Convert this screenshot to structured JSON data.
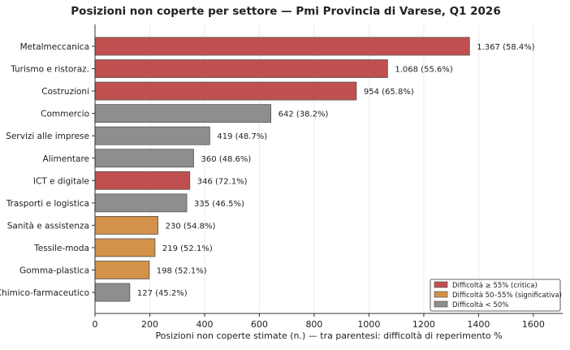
{
  "chart_data": {
    "type": "bar",
    "orientation": "horizontal",
    "title": "Posizioni non coperte per settore — Pmi Provincia di Varese, Q1 2026",
    "xlabel": "Posizioni non coperte stimate (n.) — tra parentesi: difficoltà di reperimento %",
    "ylabel": "",
    "xlim": [
      0,
      1707
    ],
    "xticks": [
      0,
      200,
      400,
      600,
      800,
      1000,
      1200,
      1400,
      1600
    ],
    "grid": "vertical",
    "legend_position": "bottom-right",
    "categories": [
      "Metalmeccanica",
      "Turismo e ristoraz.",
      "Costruzioni",
      "Commercio",
      "Servizi alle imprese",
      "Alimentare",
      "ICT e digitale",
      "Trasporti e logistica",
      "Sanità e assistenza",
      "Tessile-moda",
      "Gomma-plastica",
      "Chimico-farmaceutico"
    ],
    "values": [
      1367,
      1068,
      954,
      642,
      419,
      360,
      346,
      335,
      230,
      219,
      198,
      127
    ],
    "difficulty_pct": [
      58.4,
      55.6,
      65.8,
      38.2,
      48.7,
      48.6,
      72.1,
      46.5,
      54.8,
      52.1,
      52.1,
      45.2
    ],
    "data_labels": [
      "1.367  (58.4%)",
      "1.068  (55.6%)",
      "954  (65.8%)",
      "642  (38.2%)",
      "419  (48.7%)",
      "360  (48.6%)",
      "346  (72.1%)",
      "335  (46.5%)",
      "230  (54.8%)",
      "219  (52.1%)",
      "198  (52.1%)",
      "127  (45.2%)"
    ],
    "groups": [
      "critica",
      "critica",
      "critica",
      "bassa",
      "bassa",
      "bassa",
      "critica",
      "bassa",
      "significativa",
      "significativa",
      "significativa",
      "bassa"
    ],
    "legend": [
      {
        "key": "critica",
        "label": "Difficoltà ≥ 55% (critica)",
        "color": "#c0504f"
      },
      {
        "key": "significativa",
        "label": "Difficoltà 50–55% (significativa)",
        "color": "#d4914a"
      },
      {
        "key": "bassa",
        "label": "Difficoltà < 50%",
        "color": "#8e8e8e"
      }
    ]
  }
}
